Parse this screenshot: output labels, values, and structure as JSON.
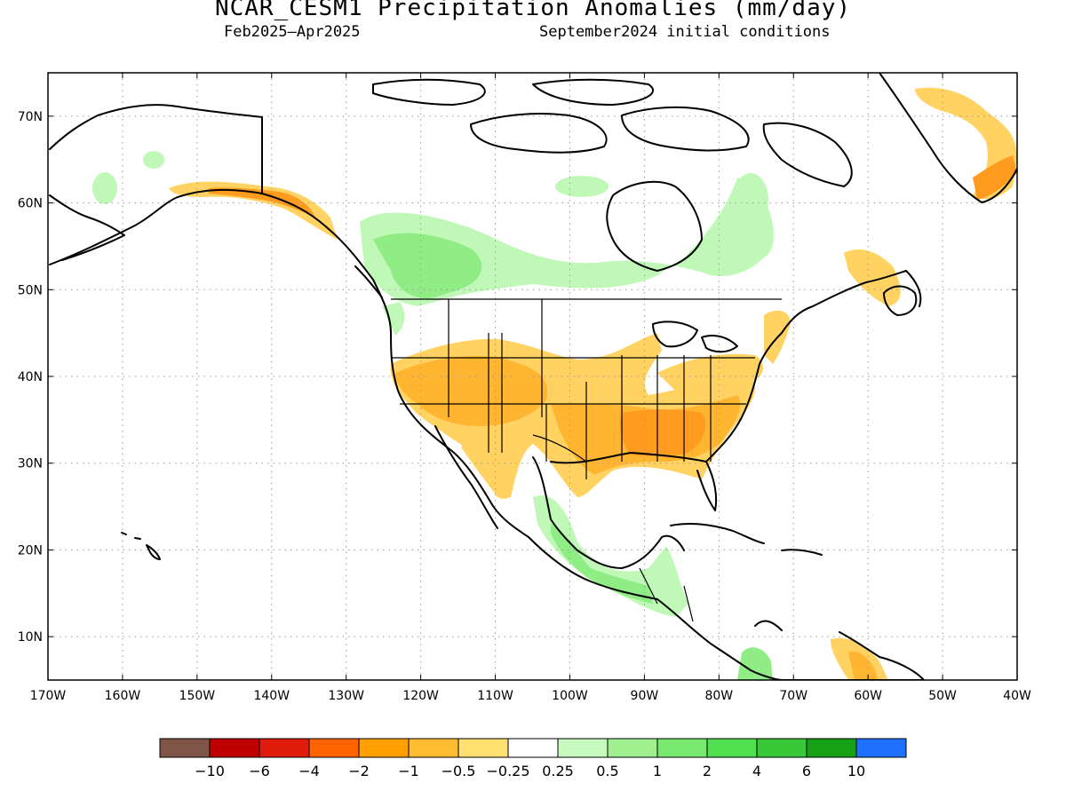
{
  "title": "NCAR_CESM1 Precipitation Anomalies (mm/day)",
  "subtitle_left": "Feb2025–Apr2025",
  "subtitle_right": "September2024 initial conditions",
  "map": {
    "lon_range": [
      -170,
      -40
    ],
    "lat_range": [
      5,
      75
    ],
    "x_ticks": [
      "170W",
      "160W",
      "150W",
      "140W",
      "130W",
      "120W",
      "110W",
      "100W",
      "90W",
      "80W",
      "70W",
      "60W",
      "50W",
      "40W"
    ],
    "x_tick_values": [
      -170,
      -160,
      -150,
      -140,
      -130,
      -120,
      -110,
      -100,
      -90,
      -80,
      -70,
      -60,
      -50,
      -40
    ],
    "y_ticks": [
      "10N",
      "20N",
      "30N",
      "40N",
      "50N",
      "60N",
      "70N"
    ],
    "y_tick_values": [
      10,
      20,
      30,
      40,
      50,
      60,
      70
    ],
    "grid": "dotted",
    "coastline_color": "#000000"
  },
  "legend": {
    "colors": [
      "#7f5548",
      "#c00000",
      "#e01c0c",
      "#ff6400",
      "#ffa000",
      "#ffbc30",
      "#ffe070",
      "#ffffff",
      "#c8fac0",
      "#a0f090",
      "#78e870",
      "#50e050",
      "#38c838",
      "#16a016",
      "#2070ff"
    ],
    "labels": [
      "−10",
      "−6",
      "−4",
      "−2",
      "−1",
      "−0.5",
      "−0.25",
      "0.25",
      "0.5",
      "1",
      "2",
      "4",
      "6",
      "10"
    ],
    "values": [
      -10,
      -6,
      -4,
      -2,
      -1,
      -0.5,
      -0.25,
      0.25,
      0.5,
      1,
      2,
      4,
      6,
      10
    ]
  },
  "regions": {
    "orange_light": "#ffd262",
    "orange_mid": "#ffb530",
    "orange_dark": "#ff8c10",
    "green_light": "#c0f8b8",
    "green_mid": "#90ec84"
  }
}
